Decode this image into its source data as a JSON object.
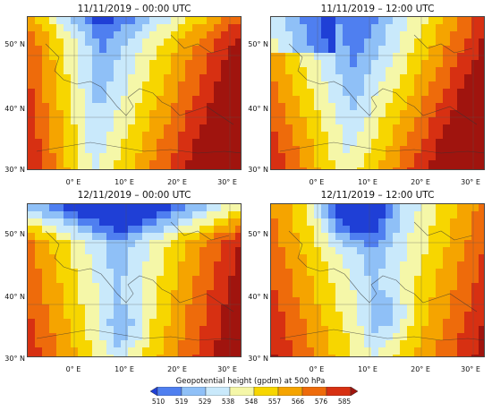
{
  "panels": [
    {
      "title": "11/11/2019 – 00:00 UTC",
      "pattern": "trough-w"
    },
    {
      "title": "11/11/2019 – 12:00 UTC",
      "pattern": "trough-c"
    },
    {
      "title": "12/11/2019 – 00:00 UTC",
      "pattern": "cutoff"
    },
    {
      "title": "12/11/2019 – 12:00 UTC",
      "pattern": "cutoff-e"
    }
  ],
  "lat_labels": [
    "50° N",
    "40° N",
    "30° N"
  ],
  "lon_labels": [
    "0° E",
    "10° E",
    "20° E",
    "30° E"
  ],
  "colorbar": {
    "title": "Geopotential height (gpdm) at 500 hPa",
    "ticks": [
      "510",
      "519",
      "529",
      "538",
      "548",
      "557",
      "566",
      "576",
      "585"
    ],
    "colors": [
      "#1f3fd6",
      "#4f7ff0",
      "#8fc0f7",
      "#c9e9fb",
      "#f5f7a8",
      "#f7d600",
      "#f5a400",
      "#ee6b0b",
      "#d73012",
      "#a0140e"
    ]
  }
}
